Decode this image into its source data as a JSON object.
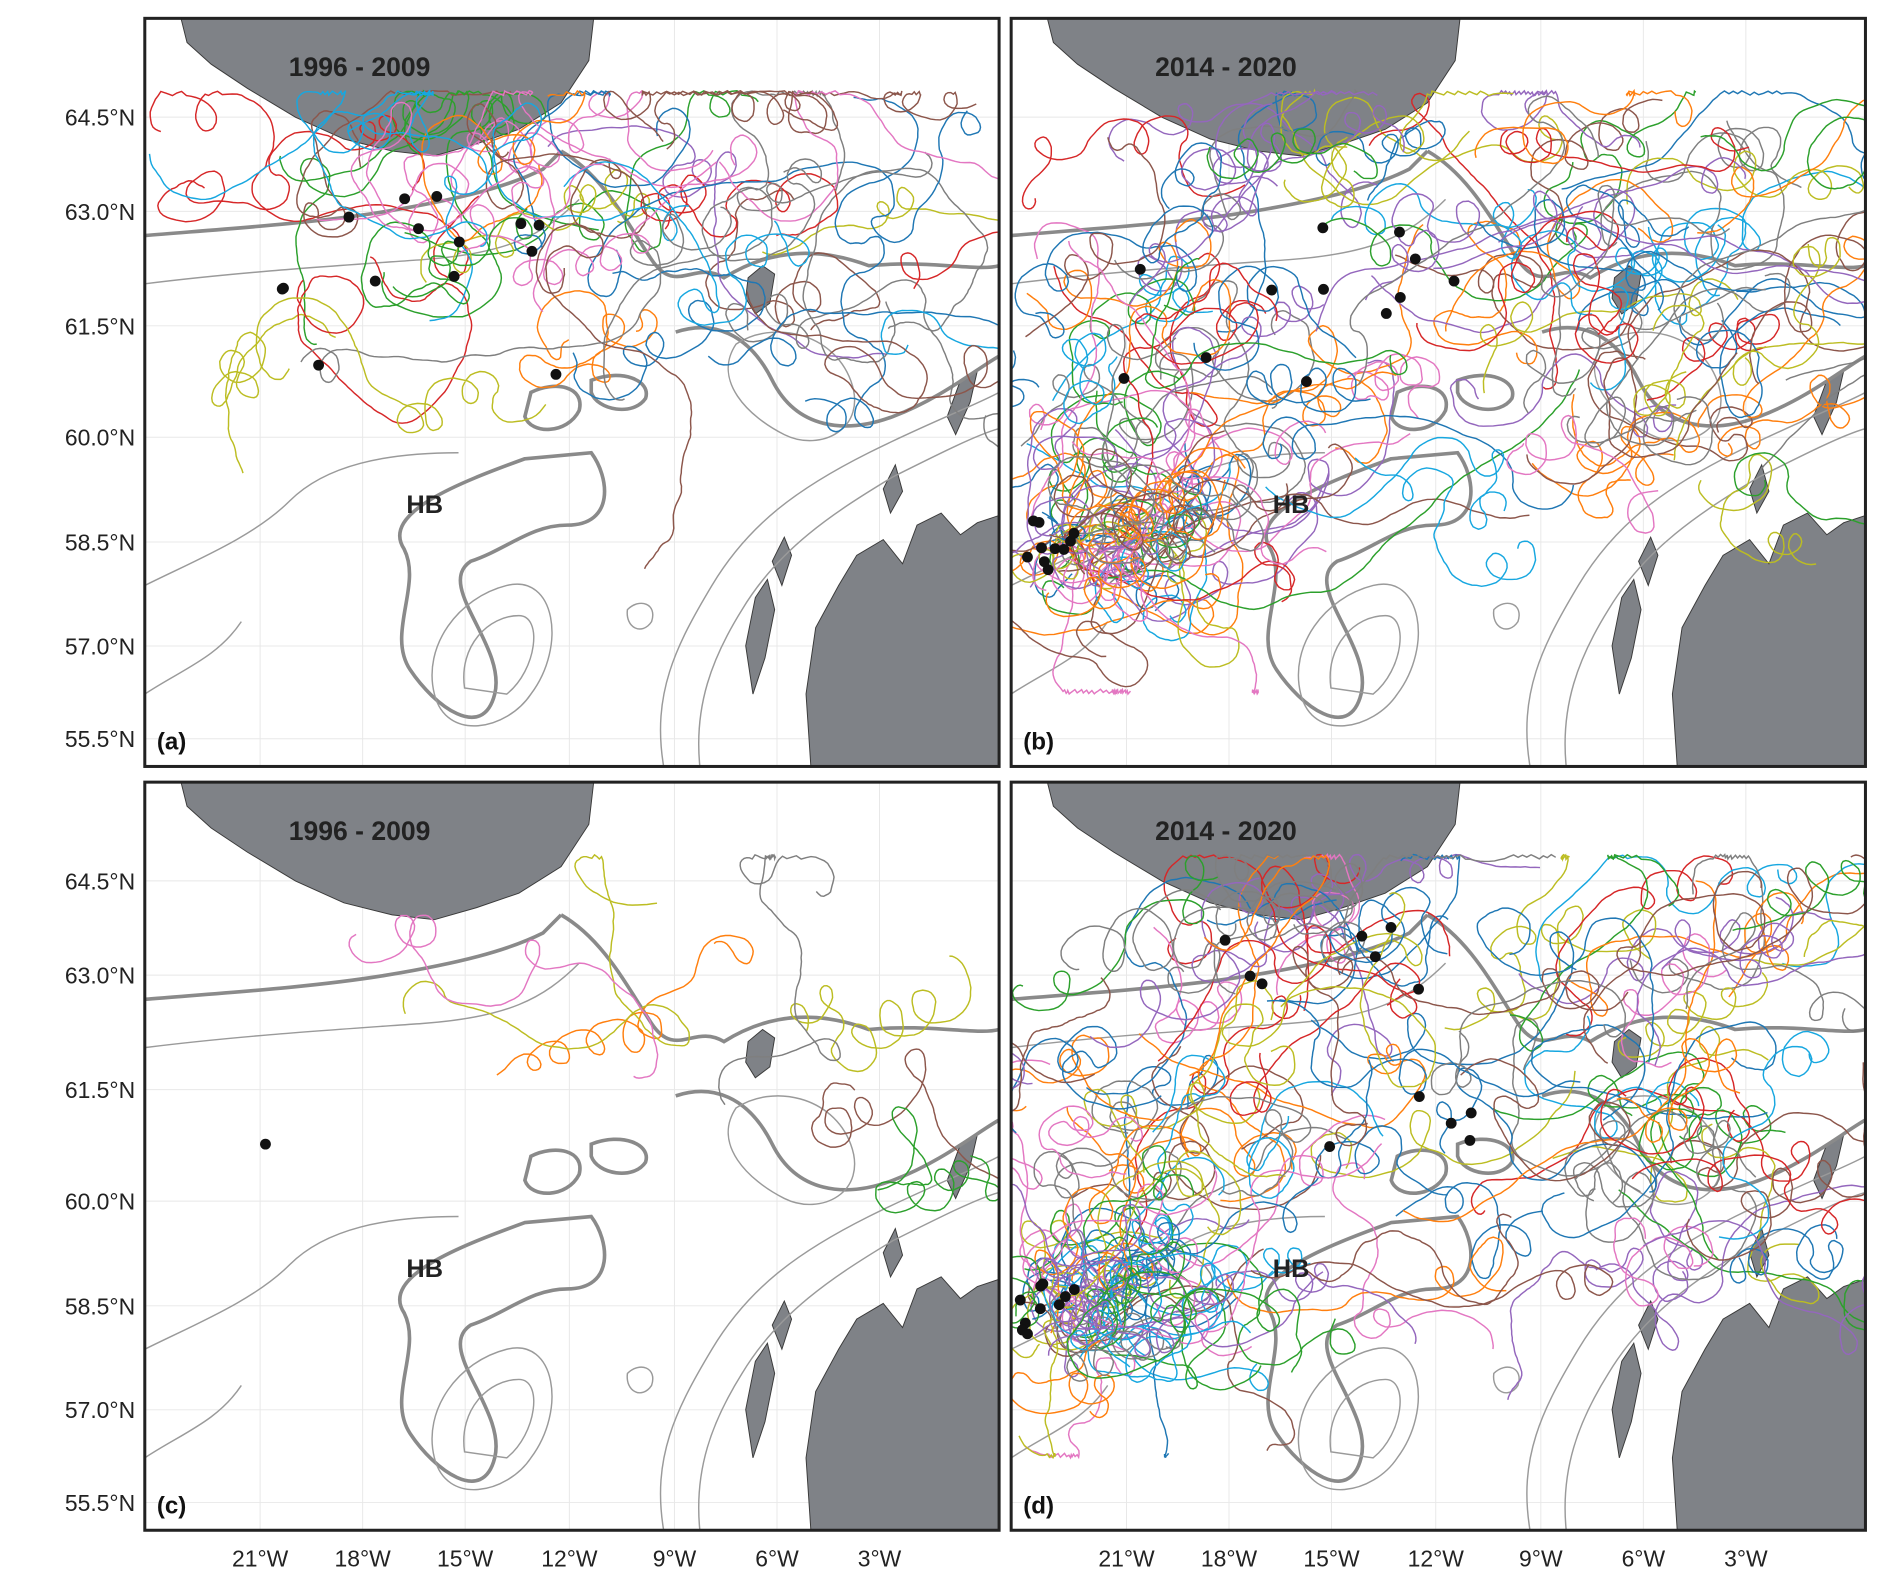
{
  "panels": [
    {
      "title": "1996 - 2009",
      "label": "(a)",
      "bank_label": "HB"
    },
    {
      "title": "2014 - 2020",
      "label": "(b)",
      "bank_label": "HB"
    },
    {
      "title": "1996 - 2009",
      "label": "(c)",
      "bank_label": "HB"
    },
    {
      "title": "2014 - 2020",
      "label": "(d)",
      "bank_label": "HB"
    }
  ],
  "lat_labels": [
    "64.5°N",
    "63.0°N",
    "61.5°N",
    "60.0°N",
    "58.5°N",
    "57.0°N",
    "55.5°N"
  ],
  "lon_labels": [
    "21°W",
    "18°W",
    "15°W",
    "12°W",
    "9°W",
    "6°W",
    "3°W"
  ]
}
